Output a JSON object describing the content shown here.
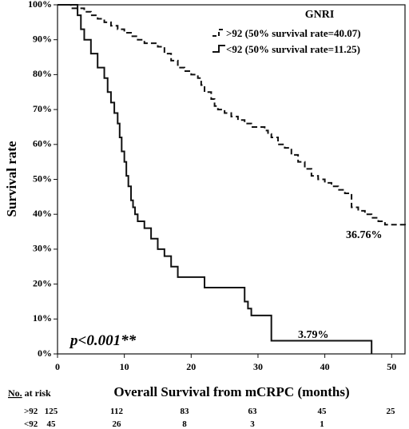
{
  "chart_data": {
    "type": "line",
    "step": true,
    "xlabel": "Overall Survival from mCRPC (months)",
    "ylabel": "Survival rate",
    "xlim": [
      0,
      52
    ],
    "ylim": [
      0,
      100
    ],
    "x_ticks": [
      "0",
      "10",
      "20",
      "30",
      "40",
      "50"
    ],
    "x_tick_values": [
      0,
      10,
      20,
      30,
      40,
      50
    ],
    "y_ticks": [
      "0%",
      "10%",
      "20%",
      "30%",
      "40%",
      "50%",
      "60%",
      "70%",
      "80%",
      "90%",
      "100%"
    ],
    "y_tick_values": [
      0,
      10,
      20,
      30,
      40,
      50,
      60,
      70,
      80,
      90,
      100
    ],
    "legend_title": "GNRI",
    "legend_position": "top-right",
    "series": [
      {
        "name": ">92 (50% survival rate=40.07)",
        "line_style": "dashed",
        "x": [
          0,
          2,
          4,
          5,
          6,
          7,
          8,
          9,
          10,
          11,
          12,
          13,
          15,
          16,
          17,
          18,
          19,
          20,
          21,
          21.5,
          22,
          23,
          23.5,
          24,
          25,
          26,
          27,
          28,
          29,
          30,
          31,
          31.5,
          32,
          33,
          34,
          35,
          36,
          37,
          38,
          39,
          40,
          41,
          42,
          43,
          44,
          45,
          46,
          47,
          48,
          49,
          52
        ],
        "y": [
          100,
          99,
          98,
          97,
          96,
          95,
          94,
          93,
          92,
          91,
          90,
          89,
          88,
          86,
          84,
          82,
          81,
          80,
          79,
          77,
          75,
          73,
          71,
          70,
          69,
          68,
          67,
          66,
          65,
          65,
          64,
          63,
          62,
          60,
          59,
          57,
          55,
          53,
          51,
          50,
          49,
          48,
          47,
          46,
          42,
          41,
          40,
          39,
          38,
          37,
          36.76
        ]
      },
      {
        "name": "<92 (50% survival rate=11.25)",
        "line_style": "solid",
        "x": [
          0,
          2,
          3,
          3.5,
          4,
          5,
          6,
          7,
          7.5,
          8,
          8.5,
          9,
          9.3,
          9.6,
          10,
          10.3,
          10.6,
          11,
          11.3,
          11.6,
          12,
          13,
          14,
          15,
          16,
          17,
          18,
          22,
          28,
          28.5,
          29,
          32,
          47
        ],
        "y": [
          100,
          100,
          97,
          93,
          90,
          86,
          82,
          79,
          75,
          72,
          69,
          66,
          62,
          58,
          55,
          51,
          48,
          44,
          42,
          40,
          38,
          36,
          33,
          30,
          28,
          25,
          22,
          19,
          15,
          13,
          11,
          3.79,
          0
        ]
      }
    ],
    "annotations": {
      "p_value": "p<0.001**",
      "series1_end": "36.76%",
      "series2_end": "3.79%"
    },
    "risk_table": {
      "header_underlined": "No.",
      "header_rest": " at risk",
      "rows": [
        {
          "label": ">92",
          "values": [
            "125",
            "112",
            "83",
            "63",
            "45",
            "25"
          ]
        },
        {
          "label": "<92",
          "values": [
            "45",
            "26",
            "8",
            "3",
            "1",
            ""
          ]
        }
      ]
    }
  }
}
